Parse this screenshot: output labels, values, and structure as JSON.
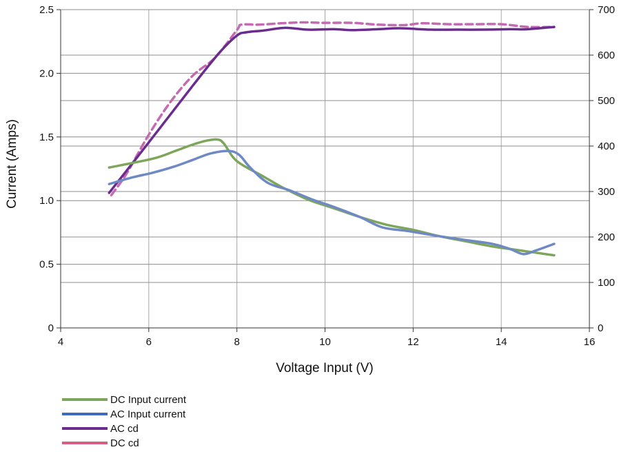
{
  "chart_data": {
    "type": "line",
    "xlabel": "Voltage Input (V)",
    "ylabel": "Current (Amps)",
    "xlim": [
      4,
      16
    ],
    "ylim": [
      0,
      2.5
    ],
    "y2lim": [
      0,
      700
    ],
    "x_ticks": [
      "4",
      "6",
      "8",
      "10",
      "12",
      "14",
      "16"
    ],
    "y_ticks": [
      "0",
      "0.5",
      "1.0",
      "1.5",
      "2.0",
      "2.5"
    ],
    "y2_ticks": [
      "0",
      "100",
      "200",
      "300",
      "400",
      "500",
      "600",
      "700"
    ],
    "grid": true,
    "legend_position": "bottom-left",
    "series": [
      {
        "name": "DC Input current",
        "axis": "left",
        "color": "#7ea65a",
        "style": "solid",
        "x": [
          5.1,
          6.1,
          6.6,
          7.0,
          7.3,
          7.55,
          7.7,
          8.0,
          8.6,
          9.0,
          9.6,
          10.2,
          10.8,
          11.4,
          12.0,
          12.6,
          13.2,
          13.8,
          14.4,
          15.2
        ],
        "y": [
          1.26,
          1.33,
          1.39,
          1.44,
          1.47,
          1.48,
          1.45,
          1.31,
          1.19,
          1.11,
          1.01,
          0.94,
          0.87,
          0.81,
          0.77,
          0.72,
          0.68,
          0.64,
          0.61,
          0.57
        ]
      },
      {
        "name": "AC Input current",
        "axis": "left",
        "color": "#6f89c4",
        "style": "solid",
        "legend_color": "#3b6cbf",
        "x": [
          5.1,
          5.6,
          6.1,
          6.6,
          7.0,
          7.4,
          7.8,
          8.05,
          8.3,
          8.7,
          9.2,
          9.7,
          10.2,
          10.8,
          11.3,
          11.9,
          12.6,
          13.2,
          13.8,
          14.2,
          14.5,
          14.8,
          15.2
        ],
        "y": [
          1.13,
          1.18,
          1.22,
          1.27,
          1.32,
          1.37,
          1.39,
          1.36,
          1.26,
          1.14,
          1.08,
          1.01,
          0.95,
          0.87,
          0.79,
          0.76,
          0.72,
          0.69,
          0.66,
          0.62,
          0.58,
          0.61,
          0.66
        ]
      },
      {
        "name": "AC cd",
        "axis": "right",
        "color": "#6a2d8f",
        "style": "solid",
        "x": [
          5.1,
          6.0,
          7.0,
          7.6,
          8.0,
          8.2,
          8.6,
          9.1,
          9.6,
          10.2,
          10.6,
          11.2,
          11.7,
          12.4,
          13.0,
          13.6,
          14.2,
          14.6,
          15.2
        ],
        "y": [
          297,
          408,
          533,
          605,
          643,
          650,
          654,
          660,
          656,
          657,
          655,
          657,
          659,
          656,
          656,
          656,
          657,
          657,
          662
        ]
      },
      {
        "name": "DC cd",
        "axis": "right",
        "color": "#c46ab0",
        "style": "dashed",
        "legend_color": "#d45f82",
        "x": [
          5.15,
          5.5,
          6.0,
          6.5,
          7.0,
          7.5,
          8.0,
          8.1,
          8.5,
          9.0,
          9.5,
          10.0,
          10.6,
          11.2,
          11.8,
          12.2,
          12.8,
          13.4,
          14.0,
          14.6,
          15.2
        ],
        "y": [
          292,
          340,
          425,
          498,
          555,
          594,
          655,
          667,
          667,
          670,
          672,
          671,
          671,
          667,
          666,
          670,
          668,
          668,
          668,
          662,
          662
        ]
      }
    ]
  }
}
